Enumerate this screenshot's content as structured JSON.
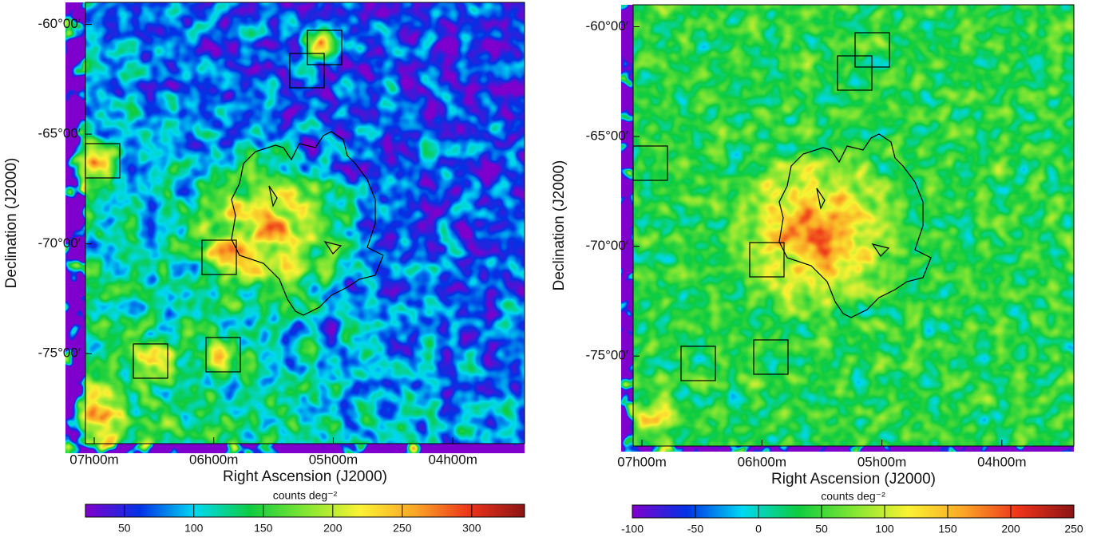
{
  "chart_data": [
    {
      "type": "map",
      "xlabel": "Right Ascension (J2000)",
      "ylabel": "Declination (J2000)",
      "xlim": [
        106.1,
        51
      ],
      "ylim": [
        -79.1,
        -59
      ],
      "xticks": [
        {
          "value": 105,
          "label": "07h00m"
        },
        {
          "value": 90,
          "label": "06h00m"
        },
        {
          "value": 75,
          "label": "05h00m"
        },
        {
          "value": 60,
          "label": "04h00m"
        }
      ],
      "yticks": [
        {
          "value": -60,
          "label": "-60°00′"
        },
        {
          "value": -65,
          "label": "-65°00′"
        },
        {
          "value": -70,
          "label": "-70°00′"
        },
        {
          "value": -75,
          "label": "-75°00′"
        }
      ],
      "colorbar": {
        "label": "counts deg⁻²",
        "lim": [
          22,
          338
        ],
        "ticks": [
          50,
          100,
          150,
          200,
          250,
          300
        ]
      }
    },
    {
      "type": "map",
      "xlabel": "Right Ascension (J2000)",
      "ylabel": "Declination (J2000)",
      "xlim": [
        106.1,
        51
      ],
      "ylim": [
        -79.1,
        -59
      ],
      "xticks": [
        {
          "value": 105,
          "label": "07h00m"
        },
        {
          "value": 90,
          "label": "06h00m"
        },
        {
          "value": 75,
          "label": "05h00m"
        },
        {
          "value": 60,
          "label": "04h00m"
        }
      ],
      "yticks": [
        {
          "value": -60,
          "label": "-60°00′"
        },
        {
          "value": -65,
          "label": "-65°00′"
        },
        {
          "value": -70,
          "label": "-70°00′"
        },
        {
          "value": -75,
          "label": "-75°00′"
        }
      ],
      "colorbar": {
        "label": "counts deg⁻²",
        "lim": [
          -100,
          250
        ],
        "ticks": [
          -100,
          -50,
          0,
          50,
          100,
          150,
          200,
          250
        ]
      }
    }
  ]
}
